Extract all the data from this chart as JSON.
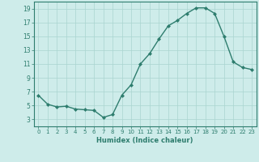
{
  "x": [
    0,
    1,
    2,
    3,
    4,
    5,
    6,
    7,
    8,
    9,
    10,
    11,
    12,
    13,
    14,
    15,
    16,
    17,
    18,
    19,
    20,
    21,
    22,
    23
  ],
  "y": [
    6.5,
    5.2,
    4.8,
    4.9,
    4.5,
    4.4,
    4.3,
    3.3,
    3.7,
    6.5,
    8.0,
    11.0,
    12.5,
    14.6,
    16.5,
    17.3,
    18.3,
    19.1,
    19.1,
    18.3,
    15.0,
    11.3,
    10.5,
    10.2
  ],
  "xlim": [
    -0.5,
    23.5
  ],
  "ylim": [
    2,
    20
  ],
  "yticks": [
    3,
    5,
    7,
    9,
    11,
    13,
    15,
    17,
    19
  ],
  "xticks": [
    0,
    1,
    2,
    3,
    4,
    5,
    6,
    7,
    8,
    9,
    10,
    11,
    12,
    13,
    14,
    15,
    16,
    17,
    18,
    19,
    20,
    21,
    22,
    23
  ],
  "xlabel": "Humidex (Indice chaleur)",
  "line_color": "#2e7d6e",
  "marker": "D",
  "marker_size": 2.0,
  "bg_color": "#ceecea",
  "grid_color": "#aad4d0"
}
